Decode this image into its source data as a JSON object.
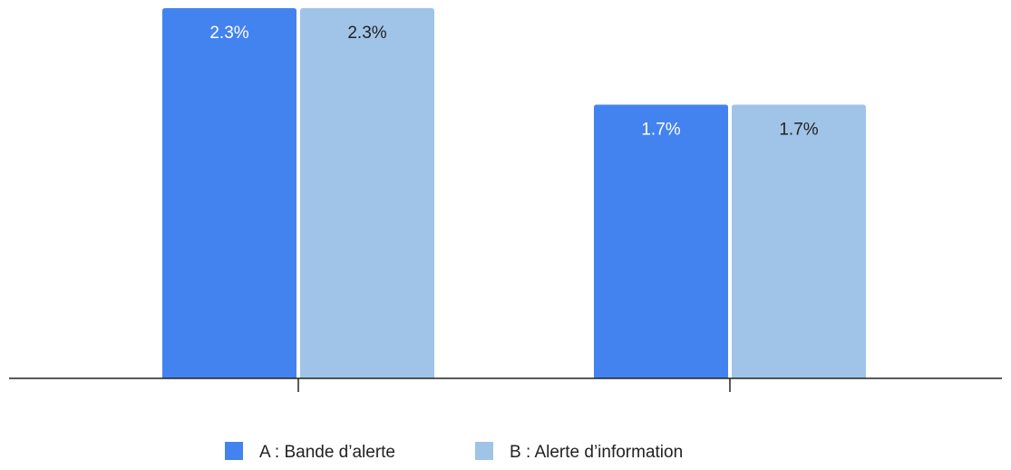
{
  "chart_data": {
    "type": "bar",
    "categories": [
      "",
      ""
    ],
    "series": [
      {
        "name": "A : Bande d’alerte",
        "values": [
          2.3,
          1.7
        ],
        "labels": [
          "2.3%",
          "1.7%"
        ],
        "color": "#4383ef",
        "label_color": "#ffffff"
      },
      {
        "name": "B : Alerte d’information",
        "values": [
          2.3,
          1.7
        ],
        "labels": [
          "2.3%",
          "1.7%"
        ],
        "color": "#9fc4e7",
        "label_color": "#222222"
      }
    ],
    "title": "",
    "xlabel": "",
    "ylabel": "",
    "ylim": [
      0,
      2.3
    ],
    "grid": false,
    "legend_position": "bottom"
  }
}
